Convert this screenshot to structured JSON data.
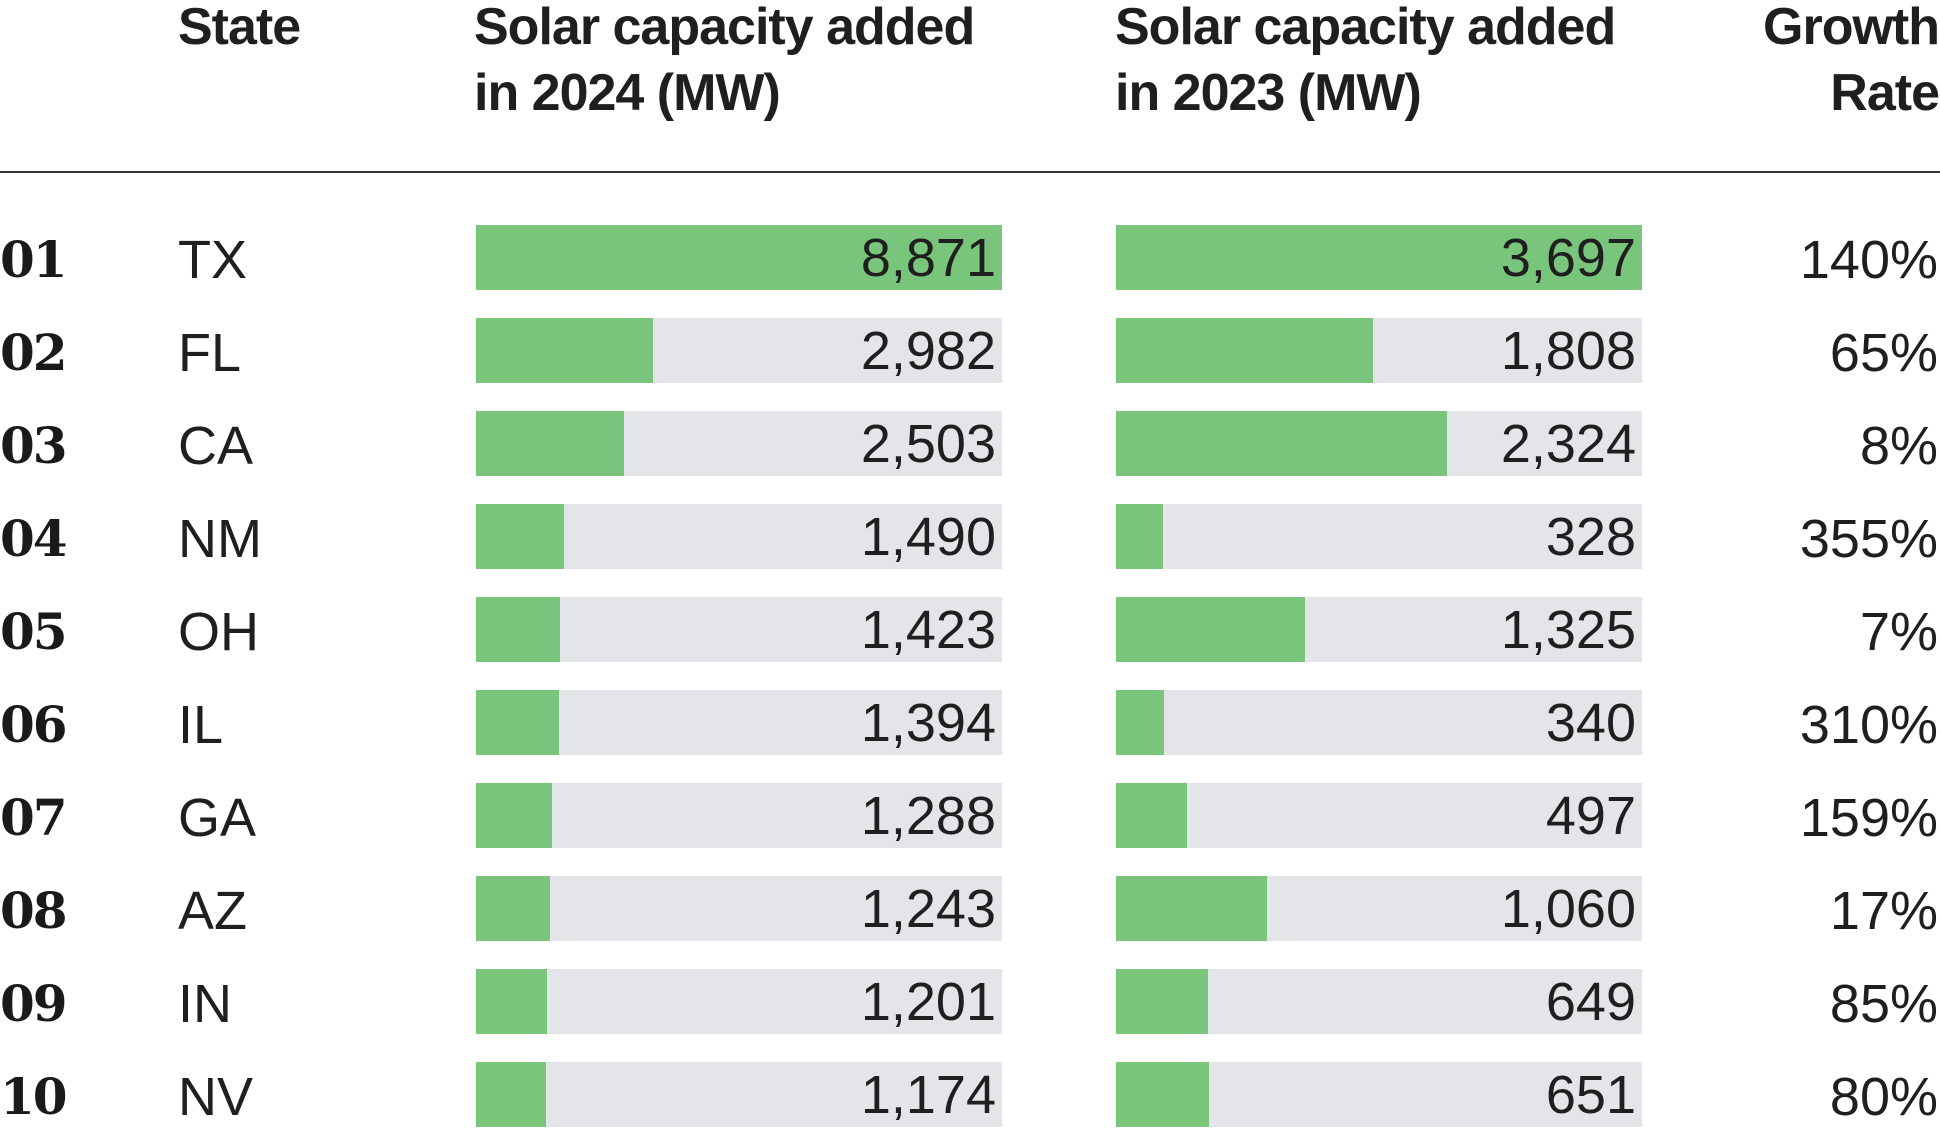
{
  "headers": {
    "state": "State",
    "col_2024_line1": "Solar capacity added",
    "col_2024_line2": "in 2024 (MW)",
    "col_2023_line1": "Solar capacity added",
    "col_2023_line2": "in 2023 (MW)",
    "growth_line1": "Growth",
    "growth_line2": "Rate"
  },
  "colors": {
    "bar_fill": "#79c57b",
    "bar_track": "#e3e5e8"
  },
  "chart_data": {
    "type": "table",
    "columns": [
      "State",
      "Solar capacity added in 2024 (MW)",
      "Solar capacity added in 2023 (MW)",
      "Growth Rate"
    ],
    "rows": [
      {
        "rank": "01",
        "state": "TX",
        "mw_2024": 8871,
        "mw_2024_label": "8,871",
        "mw_2023": 3697,
        "mw_2023_label": "3,697",
        "growth": "140%"
      },
      {
        "rank": "02",
        "state": "FL",
        "mw_2024": 2982,
        "mw_2024_label": "2,982",
        "mw_2023": 1808,
        "mw_2023_label": "1,808",
        "growth": "65%"
      },
      {
        "rank": "03",
        "state": "CA",
        "mw_2024": 2503,
        "mw_2024_label": "2,503",
        "mw_2023": 2324,
        "mw_2023_label": "2,324",
        "growth": "8%"
      },
      {
        "rank": "04",
        "state": "NM",
        "mw_2024": 1490,
        "mw_2024_label": "1,490",
        "mw_2023": 328,
        "mw_2023_label": "328",
        "growth": "355%"
      },
      {
        "rank": "05",
        "state": "OH",
        "mw_2024": 1423,
        "mw_2024_label": "1,423",
        "mw_2023": 1325,
        "mw_2023_label": "1,325",
        "growth": "7%"
      },
      {
        "rank": "06",
        "state": "IL",
        "mw_2024": 1394,
        "mw_2024_label": "1,394",
        "mw_2023": 340,
        "mw_2023_label": "340",
        "growth": "310%"
      },
      {
        "rank": "07",
        "state": "GA",
        "mw_2024": 1288,
        "mw_2024_label": "1,288",
        "mw_2023": 497,
        "mw_2023_label": "497",
        "growth": "159%"
      },
      {
        "rank": "08",
        "state": "AZ",
        "mw_2024": 1243,
        "mw_2024_label": "1,243",
        "mw_2023": 1060,
        "mw_2023_label": "1,060",
        "growth": "17%"
      },
      {
        "rank": "09",
        "state": "IN",
        "mw_2024": 1201,
        "mw_2024_label": "1,201",
        "mw_2023": 649,
        "mw_2023_label": "649",
        "growth": "85%"
      },
      {
        "rank": "10",
        "state": "NV",
        "mw_2024": 1174,
        "mw_2024_label": "1,174",
        "mw_2023": 651,
        "mw_2023_label": "651",
        "growth": "80%"
      }
    ]
  }
}
